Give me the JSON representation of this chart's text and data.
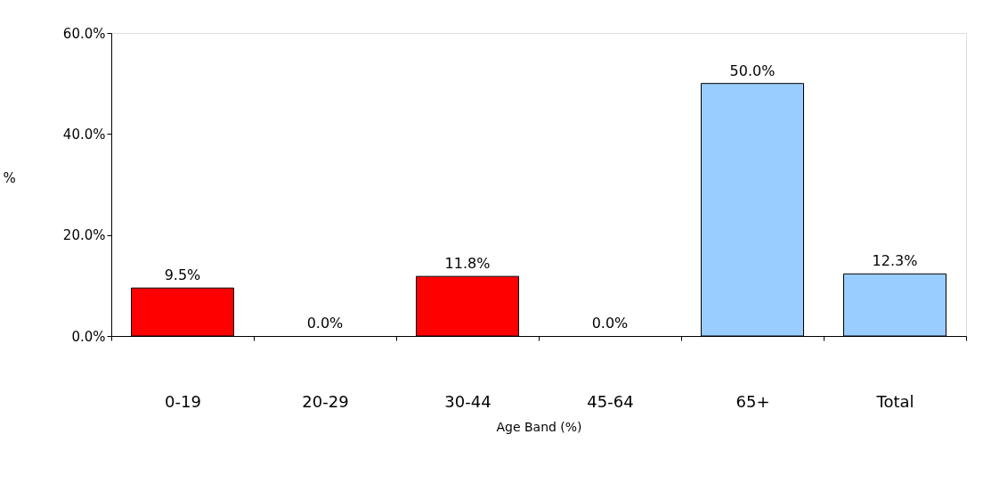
{
  "chart_data": {
    "type": "bar",
    "categories": [
      "0-19",
      "20-29",
      "30-44",
      "45-64",
      "65+",
      "Total"
    ],
    "values": [
      9.5,
      0.0,
      11.8,
      0.0,
      50.0,
      12.3
    ],
    "colors": [
      "#ff0000",
      "#ff0000",
      "#ff0000",
      "#ff0000",
      "#99ccff",
      "#99ccff"
    ],
    "value_labels": [
      "9.5%",
      "0.0%",
      "11.8%",
      "0.0%",
      "50.0%",
      "12.3%"
    ],
    "ylim": [
      0,
      60
    ],
    "yticks": [
      {
        "value": 0,
        "label": "0.0%"
      },
      {
        "value": 20,
        "label": "20.0%"
      },
      {
        "value": 40,
        "label": "40.0%"
      },
      {
        "value": 60,
        "label": "60.0%"
      }
    ],
    "xlabel": "Age Band (%)",
    "ylabel": "%",
    "grid": false
  }
}
